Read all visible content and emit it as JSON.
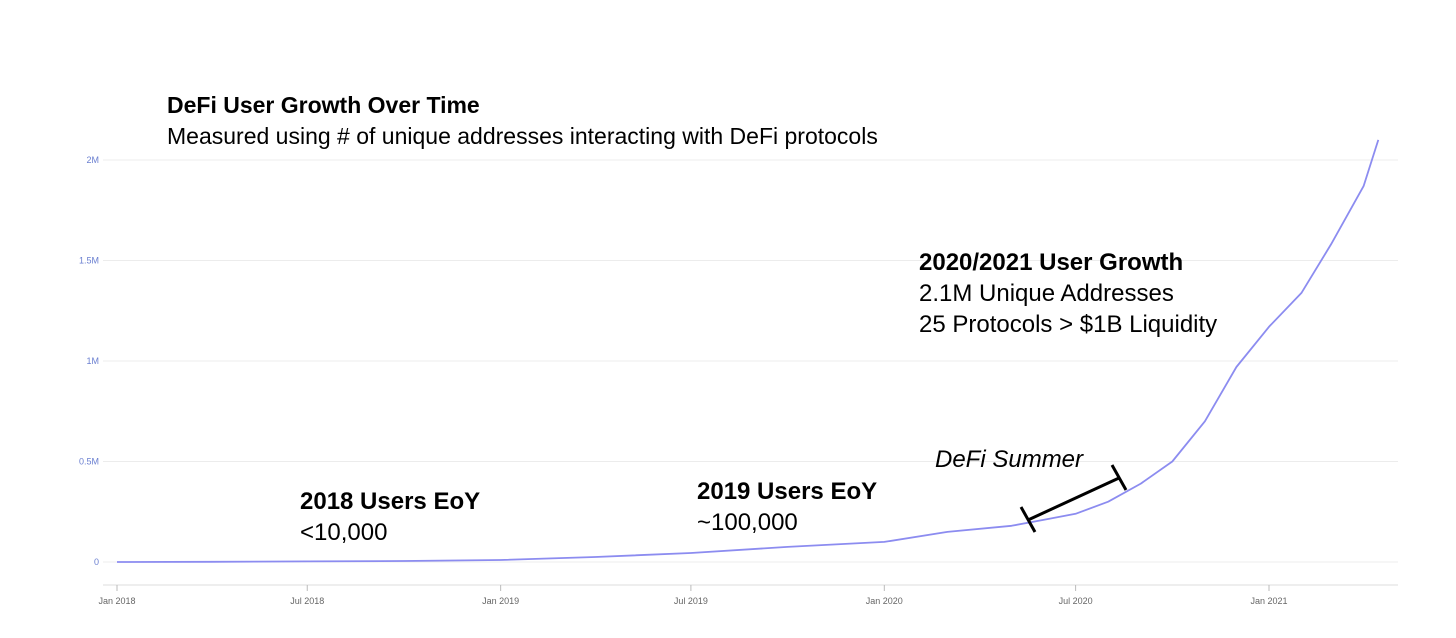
{
  "title": "DeFi User Growth Over Time",
  "subtitle": "Measured using # of unique addresses interacting with DeFi protocols",
  "annotations": {
    "a2018": {
      "heading": "2018 Users EoY",
      "line1": "<10,000"
    },
    "a2019": {
      "heading": "2019 Users EoY",
      "line1": "~100,000"
    },
    "a2020": {
      "heading": "2020/2021 User Growth",
      "line1": "2.1M Unique Addresses",
      "line2": "25 Protocols > $1B Liquidity"
    },
    "summer": "DeFi Summer"
  },
  "colors": {
    "line": "#8c8cf0",
    "axis_text": "#6a7fd0",
    "x_text": "#666666",
    "grid": "#ececec"
  },
  "chart_data": {
    "type": "line",
    "title": "DeFi User Growth Over Time",
    "subtitle": "Measured using # of unique addresses interacting with DeFi protocols",
    "xlabel": "",
    "ylabel": "",
    "ylim": [
      0,
      2000000
    ],
    "yticks": [
      0,
      500000,
      1000000,
      1500000,
      2000000
    ],
    "ytick_labels": [
      "0",
      "0.5M",
      "1M",
      "1.5M",
      "2M"
    ],
    "xticks": [
      "2018-01-01",
      "2018-07-01",
      "2019-01-01",
      "2019-07-01",
      "2020-01-01",
      "2020-07-01",
      "2021-01-01"
    ],
    "xtick_labels": [
      "Jan 2018",
      "Jul 2018",
      "Jan 2019",
      "Jul 2019",
      "Jan 2020",
      "Jul 2020",
      "Jan 2021"
    ],
    "grid": true,
    "series": [
      {
        "x": [
          "2018-01-01",
          "2018-04-01",
          "2018-07-01",
          "2018-10-01",
          "2019-01-01",
          "2019-04-01",
          "2019-07-01",
          "2019-10-01",
          "2020-01-01",
          "2020-03-01",
          "2020-05-01",
          "2020-06-01",
          "2020-07-01",
          "2020-08-01",
          "2020-09-01",
          "2020-10-01",
          "2020-11-01",
          "2020-12-01",
          "2021-01-01",
          "2021-02-01",
          "2021-03-01",
          "2021-04-01",
          "2021-04-15"
        ],
        "values": [
          0,
          1000,
          3000,
          5000,
          10000,
          25000,
          45000,
          75000,
          100000,
          150000,
          180000,
          210000,
          240000,
          300000,
          390000,
          500000,
          700000,
          970000,
          1170000,
          1340000,
          1580000,
          1870000,
          2100000
        ]
      }
    ]
  }
}
